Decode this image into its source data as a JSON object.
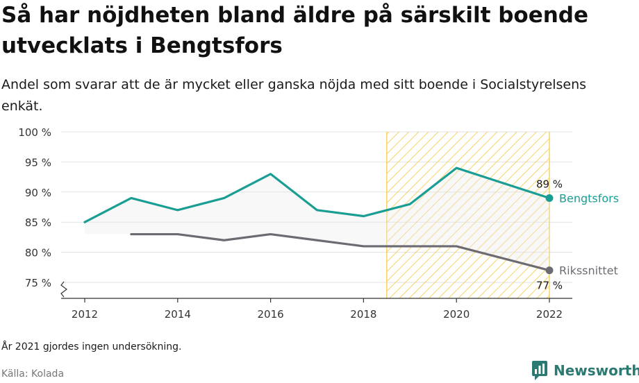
{
  "title": "Så har nöjdheten bland äldre på särskilt boende utvecklats i Bengtsfors",
  "subtitle": "Andel som svarar att de är mycket eller ganska nöjda med sitt boende i Socialstyrelsens enkät.",
  "note": "År 2021 gjordes ingen undersökning.",
  "source": "Källa: Kolada",
  "brand": "Newsworthy",
  "colors": {
    "bengtsfors": "#1a9e93",
    "riks": "#6d6b72",
    "highlight_stroke": "#f5c842",
    "grid": "#e2e2e2",
    "area_fill": "#ebebeb"
  },
  "chart_data": {
    "type": "line",
    "x_ticks": [
      2012,
      2014,
      2016,
      2018,
      2020,
      2022
    ],
    "y_ticks": [
      75,
      80,
      85,
      90,
      95,
      100
    ],
    "y_tick_labels": [
      "75 %",
      "80 %",
      "85 %",
      "90 %",
      "95 %",
      "100 %"
    ],
    "ylim": [
      72.5,
      100
    ],
    "xlim": [
      2011.5,
      2022.5
    ],
    "highlight_range": [
      2018.5,
      2022
    ],
    "series": [
      {
        "name": "Bengtsfors",
        "key": "bengtsfors",
        "x": [
          2012,
          2013,
          2014,
          2015,
          2016,
          2017,
          2018,
          2019,
          2020,
          2022
        ],
        "y": [
          85,
          89,
          87,
          89,
          93,
          87,
          86,
          88,
          94,
          89
        ],
        "end_label": "89 %"
      },
      {
        "name": "Rikssnittet",
        "key": "riks",
        "x": [
          2013,
          2014,
          2015,
          2016,
          2017,
          2018,
          2019,
          2020,
          2022
        ],
        "y": [
          83,
          83,
          82,
          83,
          82,
          81,
          81,
          81,
          77
        ],
        "end_label": "77 %"
      }
    ]
  }
}
